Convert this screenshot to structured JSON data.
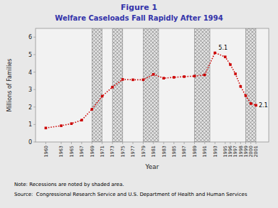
{
  "chart_data": {
    "type": "line",
    "title": "Figure 1",
    "subtitle": "Welfare Caseloads Fall Rapidly After 1994",
    "x_label": "Year",
    "y_label": "Millions of Families",
    "note": "Note: Recessions are noted by shaded area.",
    "source": "Source:  Congressional Research Service and U.S. Department of Health and Human Services",
    "x": [
      1960,
      1963,
      1965,
      1967,
      1969,
      1971,
      1973,
      1975,
      1977,
      1979,
      1981,
      1983,
      1985,
      1987,
      1989,
      1991,
      1993,
      1995,
      1996,
      1997,
      1998,
      1999,
      2000,
      2001
    ],
    "values": [
      0.8,
      0.93,
      1.05,
      1.25,
      1.87,
      2.62,
      3.14,
      3.58,
      3.56,
      3.56,
      3.87,
      3.65,
      3.7,
      3.74,
      3.77,
      3.84,
      5.1,
      4.87,
      4.43,
      3.9,
      3.18,
      2.65,
      2.2,
      2.1
    ],
    "color": "#cc0000",
    "marker": "square",
    "line_style": "dotted",
    "recession_spans": [
      {
        "start": 1969,
        "end": 1971
      },
      {
        "start": 1973,
        "end": 1975
      },
      {
        "start": 1979,
        "end": 1982
      },
      {
        "start": 1989,
        "end": 1992
      },
      {
        "start": 1999,
        "end": 2001
      }
    ],
    "annotations": [
      {
        "x": 1993,
        "y": 5.1,
        "text": "5.1"
      },
      {
        "x": 2001,
        "y": 2.1,
        "text": "2.1"
      }
    ],
    "xlim": [
      1958,
      2003.5
    ],
    "xticks": [
      1960,
      1963,
      1965,
      1967,
      1969,
      1971,
      1973,
      1975,
      1977,
      1979,
      1981,
      1983,
      1985,
      1987,
      1989,
      1991,
      1993,
      1995,
      1996,
      1997,
      1998,
      1999,
      2000,
      2001
    ],
    "ylim": [
      0,
      6.5
    ],
    "yticks": [
      0,
      1,
      2,
      3,
      4,
      5,
      6
    ],
    "grid": false
  }
}
